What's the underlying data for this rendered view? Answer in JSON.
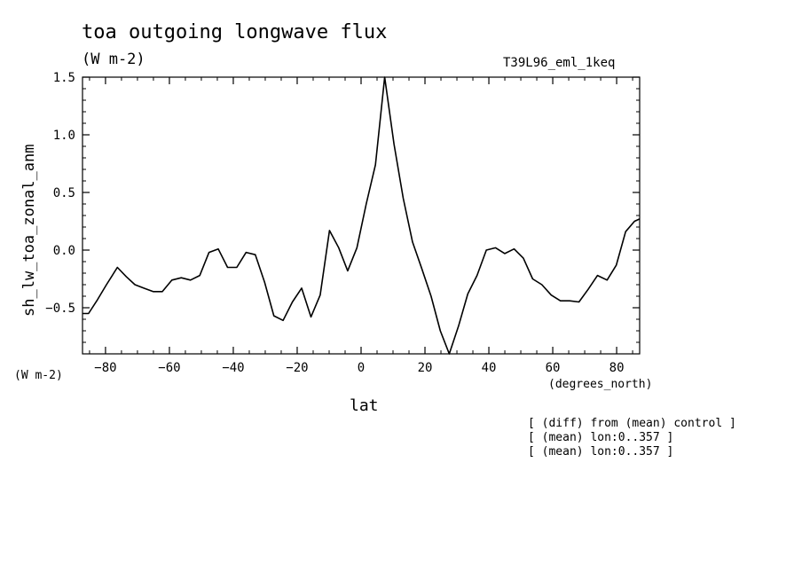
{
  "header": {
    "title": "toa outgoing longwave flux",
    "units": "(W m-2)",
    "run_label": "T39L96_eml_1keq"
  },
  "axes": {
    "ylabel": "sh_lw_toa_zonal_anm",
    "yunits": "(W m-2)",
    "xlabel": "lat",
    "xunits": "(degrees_north)"
  },
  "notes": [
    "[ (diff) from (mean) control ]",
    "[ (mean) lon:0..357 ]",
    "[ (mean) lon:0..357 ]"
  ],
  "chart_data": {
    "type": "line",
    "title": "toa outgoing longwave flux",
    "xlabel": "lat",
    "ylabel": "sh_lw_toa_zonal_anm",
    "xlim": [
      -87.2,
      87.2
    ],
    "ylim": [
      -0.9,
      1.5
    ],
    "xticks": [
      -80,
      -60,
      -40,
      -20,
      0,
      20,
      40,
      60,
      80
    ],
    "yticks": [
      -0.5,
      0.0,
      0.5,
      1.0,
      1.5
    ],
    "xtick_labels": [
      "−80",
      "−60",
      "−40",
      "−20",
      "0",
      "20",
      "40",
      "60",
      "80"
    ],
    "ytick_labels": [
      "−0.5",
      "0.0",
      "0.5",
      "1.0",
      "1.5"
    ],
    "grid": false,
    "series": [
      {
        "color": "#000000",
        "x": [
          -87.2,
          -85.3,
          -82.5,
          -79.7,
          -76.3,
          -73.5,
          -70.8,
          -68.0,
          -65.1,
          -62.2,
          -59.2,
          -56.3,
          -53.4,
          -50.5,
          -47.6,
          -44.7,
          -41.8,
          -38.9,
          -36.0,
          -33.1,
          -30.2,
          -27.3,
          -24.4,
          -21.5,
          -18.6,
          -15.7,
          -12.8,
          -9.9,
          -7.0,
          -4.2,
          -1.3,
          1.6,
          4.5,
          7.4,
          10.3,
          13.2,
          16.1,
          19.0,
          21.9,
          24.8,
          27.6,
          30.5,
          33.4,
          36.3,
          39.2,
          42.1,
          45.0,
          47.9,
          50.8,
          53.7,
          56.6,
          59.5,
          62.4,
          65.3,
          68.2,
          71.1,
          74.0,
          77.0,
          79.9,
          82.8,
          85.6,
          87.2
        ],
        "y": [
          -0.55,
          -0.55,
          -0.43,
          -0.3,
          -0.15,
          -0.23,
          -0.3,
          -0.33,
          -0.36,
          -0.36,
          -0.26,
          -0.24,
          -0.26,
          -0.22,
          -0.02,
          0.01,
          -0.15,
          -0.15,
          -0.02,
          -0.04,
          -0.28,
          -0.57,
          -0.61,
          -0.45,
          -0.33,
          -0.58,
          -0.39,
          0.17,
          0.02,
          -0.18,
          0.02,
          0.4,
          0.74,
          1.5,
          0.92,
          0.45,
          0.07,
          -0.16,
          -0.4,
          -0.7,
          -0.9,
          -0.66,
          -0.38,
          -0.22,
          0.0,
          0.02,
          -0.03,
          0.01,
          -0.07,
          -0.25,
          -0.3,
          -0.39,
          -0.44,
          -0.44,
          -0.45,
          -0.34,
          -0.22,
          -0.26,
          -0.13,
          0.16,
          0.25,
          0.27
        ]
      }
    ]
  }
}
